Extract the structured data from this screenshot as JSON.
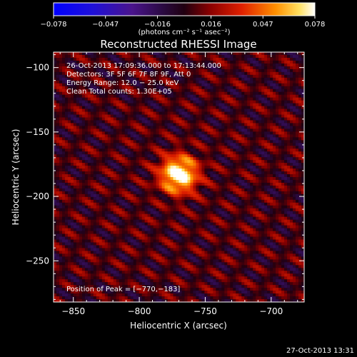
{
  "chart_data": {
    "type": "heatmap",
    "title": "Reconstructed RHESSI Image",
    "xlabel": "Heliocentric X (arcsec)",
    "ylabel": "Heliocentric Y (arcsec)",
    "xlim": [
      -865,
      -675
    ],
    "ylim": [
      -282,
      -88
    ],
    "x_ticks": [
      -850,
      -800,
      -750,
      -700
    ],
    "x_tick_labels": [
      "−850",
      "−800",
      "−750",
      "−700"
    ],
    "y_ticks": [
      -100,
      -150,
      -200,
      -250
    ],
    "y_tick_labels": [
      "−100",
      "−150",
      "−200",
      "−250"
    ],
    "colorbar": {
      "min": -0.078,
      "max": 0.078,
      "ticks": [
        -0.078,
        -0.047,
        -0.016,
        0.016,
        0.047,
        0.078
      ],
      "tick_labels": [
        "−0.078",
        "−0.047",
        "−0.016",
        "0.016",
        "0.047",
        "0.078"
      ],
      "units_label": "(photons cm⁻² s⁻¹ asec⁻²)",
      "colormap": "blue-purple-red-yellow-white"
    },
    "annotations": [
      "26-Oct-2013 17:09:36.000 to 17:13:44.000",
      "Detectors: 3F 5F 6F 7F 8F 9F, Att 0",
      "Energy Range: 12.0 − 25.0 keV",
      "Clean    Total counts: 1.30E+05"
    ],
    "peak_label": "Position of Peak = [−770,−183]",
    "peak": {
      "x": -770,
      "y": -183
    },
    "grid": false
  },
  "timestamp": "27-Oct-2013 13:31"
}
